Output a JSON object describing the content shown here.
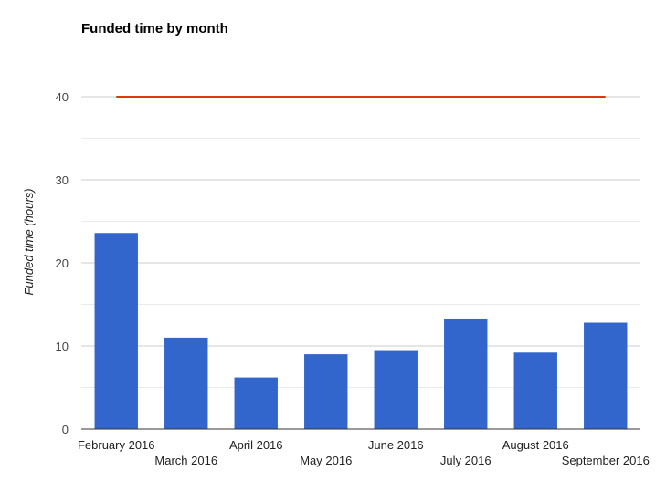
{
  "chart_data": {
    "type": "bar",
    "title": "Funded time by month",
    "xlabel": "",
    "ylabel": "Funded time (hours)",
    "ylim": [
      0,
      40
    ],
    "yticks": [
      0,
      10,
      20,
      30,
      40
    ],
    "grid": true,
    "categories": [
      "February 2016",
      "March 2016",
      "April 2016",
      "May 2016",
      "June 2016",
      "July 2016",
      "August 2016",
      "September 2016"
    ],
    "values": [
      23.6,
      11.0,
      6.2,
      9.0,
      9.5,
      13.3,
      9.2,
      12.8
    ],
    "reference_line": {
      "value": 40
    },
    "colors": {
      "bars": "#3366cc",
      "reference_line": "#dc3912",
      "gridline": "#cccccc",
      "baseline": "#333333"
    }
  }
}
